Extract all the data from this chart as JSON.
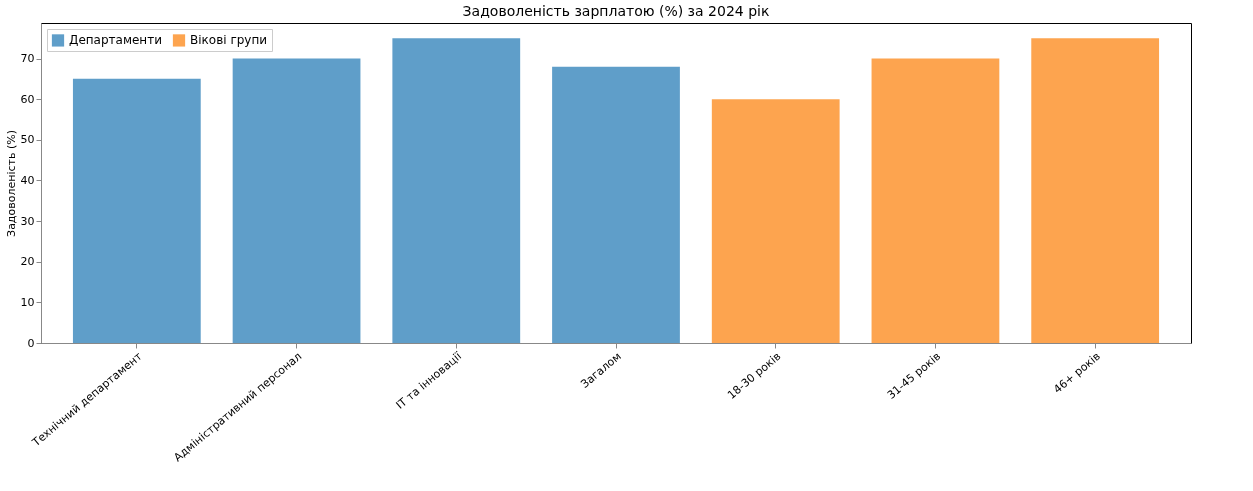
{
  "chart_data": {
    "type": "bar",
    "title": "Задоволеність зарплатою (%) за 2024 рік",
    "ylabel": "Задоволеність (%)",
    "categories": [
      "Технічний департамент",
      "Адміністративний персонал",
      "IT та інновації",
      "Загалом",
      "18-30 років",
      "31-45 років",
      "46+ років"
    ],
    "series": [
      {
        "name": "Департаменти",
        "color": "#5f9ec9",
        "values": [
          65,
          70,
          75,
          68,
          null,
          null,
          null
        ]
      },
      {
        "name": "Вікові групи",
        "color": "#fda44f",
        "values": [
          null,
          null,
          null,
          null,
          60,
          70,
          75
        ]
      }
    ],
    "ylim": [
      0,
      78.75
    ],
    "yticks": [
      0,
      10,
      20,
      30,
      40,
      50,
      60,
      70
    ],
    "grid": false,
    "legend": "top left"
  }
}
